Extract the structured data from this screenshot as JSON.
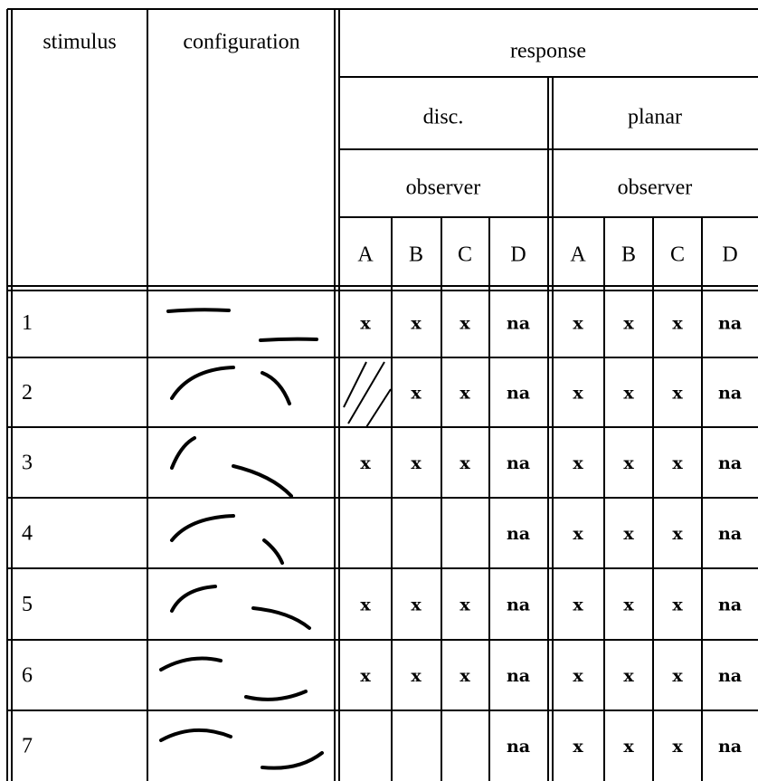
{
  "table": {
    "header": {
      "stimulus": "stimulus",
      "configuration": "configuration",
      "response": "response",
      "groups": [
        {
          "name": "disc.",
          "sub": "observer",
          "observers": [
            "A",
            "B",
            "C",
            "D"
          ]
        },
        {
          "name": "planar",
          "sub": "observer",
          "observers": [
            "A",
            "B",
            "C",
            "D"
          ]
        }
      ]
    },
    "rows": [
      {
        "stimulus": "1",
        "disc": [
          "x",
          "x",
          "x",
          "na"
        ],
        "planar": [
          "x",
          "x",
          "x",
          "na"
        ]
      },
      {
        "stimulus": "2",
        "disc": [
          null,
          "x",
          "x",
          "na"
        ],
        "planar": [
          "x",
          "x",
          "x",
          "na"
        ]
      },
      {
        "stimulus": "3",
        "disc": [
          "x",
          "x",
          "x",
          "na"
        ],
        "planar": [
          "x",
          "x",
          "x",
          "na"
        ]
      },
      {
        "stimulus": "4",
        "disc": [
          null,
          null,
          null,
          "na"
        ],
        "planar": [
          "x",
          "x",
          "x",
          "na"
        ]
      },
      {
        "stimulus": "5",
        "disc": [
          "x",
          "x",
          "x",
          "na"
        ],
        "planar": [
          "x",
          "x",
          "x",
          "na"
        ]
      },
      {
        "stimulus": "6",
        "disc": [
          "x",
          "x",
          "x",
          "na"
        ],
        "planar": [
          "x",
          "x",
          "x",
          "na"
        ]
      },
      {
        "stimulus": "7",
        "disc": [
          null,
          null,
          null,
          "na"
        ],
        "planar": [
          "x",
          "x",
          "x",
          "na"
        ]
      }
    ]
  }
}
